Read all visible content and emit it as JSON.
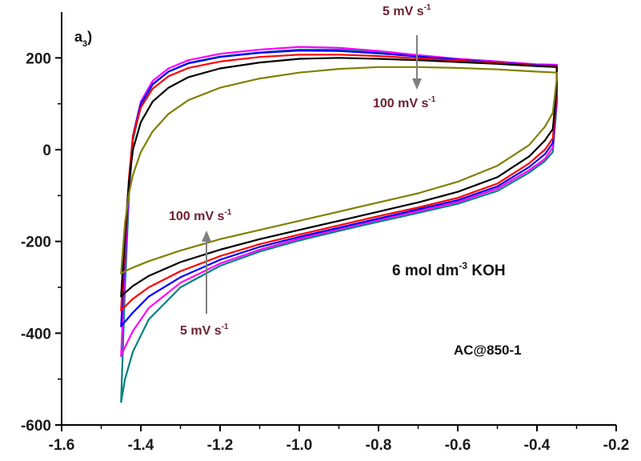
{
  "panel_label": {
    "base": "a",
    "subscript": "3",
    "close": ")"
  },
  "electrolyte": {
    "prefix": "6 mol dm",
    "exponent": "-3",
    "suffix": " KOH"
  },
  "sample": "AC@850-1",
  "arrow_top": {
    "from_label": "5 mV s",
    "to_label": "100 mV s",
    "exponent": "-1"
  },
  "arrow_bottom": {
    "from_label": "5 mV s",
    "to_label": "100 mV s",
    "exponent": "-1"
  },
  "colors": {
    "axis": "#000000",
    "annotation_text": "#6b2130",
    "arrow": "#808080"
  },
  "chart_data": {
    "type": "line",
    "title": "",
    "xlabel": "",
    "ylabel": "",
    "xlim": [
      -1.6,
      -0.2
    ],
    "ylim": [
      -600,
      300
    ],
    "x_ticks": [
      -1.6,
      -1.4,
      -1.2,
      -1.0,
      -0.8,
      -0.6,
      -0.4,
      -0.2
    ],
    "x_tick_labels": [
      "-1.6",
      "-1.4",
      "-1.2",
      "-1.0",
      "-0.8",
      "-0.6",
      "-0.4",
      "-0.2"
    ],
    "y_ticks": [
      -600,
      -400,
      -200,
      0,
      200
    ],
    "y_tick_labels": [
      "-600",
      "-400",
      "-200",
      "0",
      "200"
    ],
    "grid": false,
    "legend": "none",
    "series": [
      {
        "color": "#008080",
        "upper": [
          [
            -1.45,
            -550
          ],
          [
            -1.44,
            -300
          ],
          [
            -1.43,
            -100
          ],
          [
            -1.42,
            20
          ],
          [
            -1.4,
            95
          ],
          [
            -1.37,
            142
          ],
          [
            -1.33,
            170
          ],
          [
            -1.28,
            189
          ],
          [
            -1.2,
            203
          ],
          [
            -1.1,
            212
          ],
          [
            -1.0,
            218
          ],
          [
            -0.9,
            218
          ],
          [
            -0.8,
            213
          ],
          [
            -0.7,
            205
          ],
          [
            -0.6,
            198
          ],
          [
            -0.5,
            192
          ],
          [
            -0.4,
            184
          ],
          [
            -0.35,
            182
          ]
        ],
        "lower": [
          [
            -0.35,
            100
          ],
          [
            -0.36,
            -5
          ],
          [
            -0.38,
            -25
          ],
          [
            -0.42,
            -50
          ],
          [
            -0.5,
            -90
          ],
          [
            -0.6,
            -118
          ],
          [
            -0.7,
            -138
          ],
          [
            -0.8,
            -157
          ],
          [
            -0.9,
            -177
          ],
          [
            -1.0,
            -198
          ],
          [
            -1.1,
            -222
          ],
          [
            -1.2,
            -253
          ],
          [
            -1.3,
            -300
          ],
          [
            -1.38,
            -370
          ],
          [
            -1.42,
            -440
          ],
          [
            -1.44,
            -500
          ],
          [
            -1.45,
            -550
          ]
        ]
      },
      {
        "color": "#ff00ff",
        "upper": [
          [
            -1.45,
            -450
          ],
          [
            -1.44,
            -250
          ],
          [
            -1.43,
            -80
          ],
          [
            -1.42,
            30
          ],
          [
            -1.4,
            105
          ],
          [
            -1.37,
            150
          ],
          [
            -1.33,
            177
          ],
          [
            -1.28,
            195
          ],
          [
            -1.2,
            209
          ],
          [
            -1.1,
            218
          ],
          [
            -1.0,
            224
          ],
          [
            -0.9,
            222
          ],
          [
            -0.8,
            215
          ],
          [
            -0.7,
            206
          ],
          [
            -0.6,
            198
          ],
          [
            -0.5,
            192
          ],
          [
            -0.4,
            186
          ],
          [
            -0.35,
            185
          ]
        ],
        "lower": [
          [
            -0.35,
            110
          ],
          [
            -0.36,
            5
          ],
          [
            -0.38,
            -20
          ],
          [
            -0.42,
            -45
          ],
          [
            -0.5,
            -85
          ],
          [
            -0.6,
            -114
          ],
          [
            -0.7,
            -134
          ],
          [
            -0.8,
            -153
          ],
          [
            -0.9,
            -173
          ],
          [
            -1.0,
            -194
          ],
          [
            -1.1,
            -218
          ],
          [
            -1.2,
            -248
          ],
          [
            -1.3,
            -290
          ],
          [
            -1.38,
            -345
          ],
          [
            -1.42,
            -395
          ],
          [
            -1.44,
            -430
          ],
          [
            -1.45,
            -450
          ]
        ]
      },
      {
        "color": "#0000ff",
        "upper": [
          [
            -1.45,
            -385
          ],
          [
            -1.44,
            -220
          ],
          [
            -1.43,
            -70
          ],
          [
            -1.42,
            30
          ],
          [
            -1.4,
            100
          ],
          [
            -1.37,
            143
          ],
          [
            -1.33,
            170
          ],
          [
            -1.28,
            188
          ],
          [
            -1.2,
            202
          ],
          [
            -1.1,
            211
          ],
          [
            -1.0,
            216
          ],
          [
            -0.9,
            215
          ],
          [
            -0.8,
            210
          ],
          [
            -0.7,
            203
          ],
          [
            -0.6,
            196
          ],
          [
            -0.5,
            190
          ],
          [
            -0.4,
            184
          ],
          [
            -0.35,
            183
          ]
        ],
        "lower": [
          [
            -0.35,
            115
          ],
          [
            -0.36,
            15
          ],
          [
            -0.38,
            -10
          ],
          [
            -0.42,
            -38
          ],
          [
            -0.5,
            -80
          ],
          [
            -0.6,
            -110
          ],
          [
            -0.7,
            -130
          ],
          [
            -0.8,
            -150
          ],
          [
            -0.9,
            -170
          ],
          [
            -1.0,
            -190
          ],
          [
            -1.1,
            -212
          ],
          [
            -1.2,
            -240
          ],
          [
            -1.3,
            -278
          ],
          [
            -1.38,
            -320
          ],
          [
            -1.42,
            -355
          ],
          [
            -1.44,
            -375
          ],
          [
            -1.45,
            -385
          ]
        ]
      },
      {
        "color": "#ff0000",
        "upper": [
          [
            -1.45,
            -350
          ],
          [
            -1.44,
            -200
          ],
          [
            -1.43,
            -60
          ],
          [
            -1.42,
            30
          ],
          [
            -1.4,
            92
          ],
          [
            -1.37,
            133
          ],
          [
            -1.33,
            160
          ],
          [
            -1.28,
            178
          ],
          [
            -1.2,
            192
          ],
          [
            -1.1,
            202
          ],
          [
            -1.0,
            207
          ],
          [
            -0.9,
            207
          ],
          [
            -0.8,
            204
          ],
          [
            -0.7,
            199
          ],
          [
            -0.6,
            194
          ],
          [
            -0.5,
            189
          ],
          [
            -0.4,
            183
          ],
          [
            -0.35,
            182
          ]
        ],
        "lower": [
          [
            -0.35,
            125
          ],
          [
            -0.36,
            25
          ],
          [
            -0.38,
            0
          ],
          [
            -0.42,
            -30
          ],
          [
            -0.5,
            -74
          ],
          [
            -0.6,
            -105
          ],
          [
            -0.7,
            -126
          ],
          [
            -0.8,
            -145
          ],
          [
            -0.9,
            -165
          ],
          [
            -1.0,
            -185
          ],
          [
            -1.1,
            -206
          ],
          [
            -1.2,
            -232
          ],
          [
            -1.3,
            -265
          ],
          [
            -1.38,
            -300
          ],
          [
            -1.42,
            -325
          ],
          [
            -1.44,
            -342
          ],
          [
            -1.45,
            -350
          ]
        ]
      },
      {
        "color": "#000000",
        "upper": [
          [
            -1.45,
            -320
          ],
          [
            -1.44,
            -180
          ],
          [
            -1.43,
            -70
          ],
          [
            -1.42,
            0
          ],
          [
            -1.4,
            60
          ],
          [
            -1.37,
            105
          ],
          [
            -1.33,
            135
          ],
          [
            -1.28,
            158
          ],
          [
            -1.2,
            177
          ],
          [
            -1.1,
            190
          ],
          [
            -1.0,
            198
          ],
          [
            -0.9,
            200
          ],
          [
            -0.8,
            198
          ],
          [
            -0.7,
            195
          ],
          [
            -0.6,
            191
          ],
          [
            -0.5,
            187
          ],
          [
            -0.4,
            182
          ],
          [
            -0.35,
            180
          ]
        ],
        "lower": [
          [
            -0.35,
            140
          ],
          [
            -0.36,
            45
          ],
          [
            -0.38,
            20
          ],
          [
            -0.42,
            -15
          ],
          [
            -0.5,
            -60
          ],
          [
            -0.6,
            -92
          ],
          [
            -0.7,
            -115
          ],
          [
            -0.8,
            -135
          ],
          [
            -0.9,
            -155
          ],
          [
            -1.0,
            -175
          ],
          [
            -1.1,
            -195
          ],
          [
            -1.2,
            -218
          ],
          [
            -1.3,
            -245
          ],
          [
            -1.38,
            -275
          ],
          [
            -1.42,
            -297
          ],
          [
            -1.44,
            -312
          ],
          [
            -1.45,
            -320
          ]
        ]
      },
      {
        "color": "#808000",
        "upper": [
          [
            -1.45,
            -270
          ],
          [
            -1.44,
            -160
          ],
          [
            -1.43,
            -95
          ],
          [
            -1.42,
            -55
          ],
          [
            -1.4,
            -5
          ],
          [
            -1.37,
            40
          ],
          [
            -1.33,
            78
          ],
          [
            -1.28,
            108
          ],
          [
            -1.2,
            135
          ],
          [
            -1.1,
            155
          ],
          [
            -1.0,
            168
          ],
          [
            -0.9,
            176
          ],
          [
            -0.8,
            180
          ],
          [
            -0.7,
            180
          ],
          [
            -0.6,
            178
          ],
          [
            -0.5,
            175
          ],
          [
            -0.4,
            170
          ],
          [
            -0.35,
            168
          ]
        ],
        "lower": [
          [
            -0.35,
            155
          ],
          [
            -0.36,
            80
          ],
          [
            -0.38,
            50
          ],
          [
            -0.42,
            10
          ],
          [
            -0.5,
            -35
          ],
          [
            -0.6,
            -70
          ],
          [
            -0.7,
            -95
          ],
          [
            -0.8,
            -115
          ],
          [
            -0.9,
            -135
          ],
          [
            -1.0,
            -155
          ],
          [
            -1.1,
            -175
          ],
          [
            -1.2,
            -195
          ],
          [
            -1.3,
            -220
          ],
          [
            -1.38,
            -243
          ],
          [
            -1.42,
            -257
          ],
          [
            -1.44,
            -265
          ],
          [
            -1.45,
            -270
          ]
        ]
      }
    ]
  }
}
